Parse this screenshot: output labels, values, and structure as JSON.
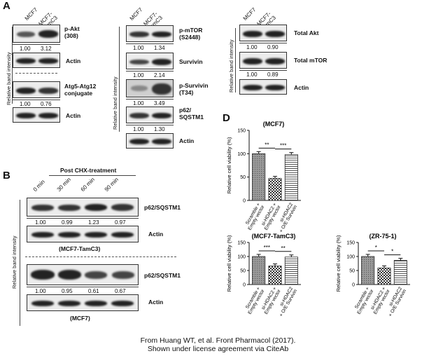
{
  "panel_labels": {
    "a": "A",
    "b": "B",
    "d": "D"
  },
  "lanes": {
    "mcf7": "MCF7",
    "tamc3": "MCF7-\nTamC3"
  },
  "y_axis_blot": "Relative band intensity",
  "a_col1": {
    "pakt": "p-Akt\n(308)",
    "pakt_vals": [
      "1.00",
      "3.12"
    ],
    "actin": "Actin",
    "atg": "Atg5-Atg12\nconjugate",
    "atg_vals": [
      "1.00",
      "0.76"
    ]
  },
  "a_col2": {
    "pmtor": "p-mTOR\n(S2448)",
    "pmtor_vals": [
      "1.00",
      "1.34"
    ],
    "survivin": "Survivin",
    "survivin_vals": [
      "1.00",
      "2.14"
    ],
    "psurv": "p-Survivin\n(T34)",
    "psurv_vals": [
      "1.00",
      "3.49"
    ],
    "p62": "p62/\nSQSTM1",
    "p62_vals": [
      "1.00",
      "1.30"
    ],
    "actin": "Actin"
  },
  "a_col3": {
    "takt": "Total Akt",
    "takt_vals": [
      "1.00",
      "0.90"
    ],
    "tmtor": "Total mTOR",
    "tmtor_vals": [
      "1.00",
      "0.89"
    ],
    "actin": "Actin"
  },
  "b": {
    "header": "Post CHX-treatment",
    "times": [
      "0 min",
      "30 min",
      "60 min",
      "90 min"
    ],
    "p62": "p62/SQSTM1",
    "top_vals": [
      "1.00",
      "0.99",
      "1.23",
      "0.97"
    ],
    "bot_vals": [
      "1.00",
      "0.95",
      "0.61",
      "0.67"
    ],
    "actin": "Actin",
    "top_cell": "(MCF7-TamC3)",
    "bot_cell": "(MCF7)"
  },
  "d": {
    "ylabel": "Relative cell viability (%)",
    "categories": [
      "Scramble +\nEmpty vector",
      "si-HDAC2 +\nEmpty vector",
      "si-HDAC2\n+ O/E Survivin"
    ]
  },
  "chart_data": [
    {
      "type": "bar",
      "title": "(MCF7)",
      "categories": [
        "Scramble + Empty vector",
        "si-HDAC2 + Empty vector",
        "si-HDAC2 + O/E Survivin"
      ],
      "values": [
        100,
        47,
        98
      ],
      "ylabel": "Relative cell viability (%)",
      "ylim": [
        0,
        150
      ],
      "yticks": [
        0,
        50,
        100,
        150
      ],
      "sig": [
        {
          "pair": [
            0,
            1
          ],
          "label": "**"
        },
        {
          "pair": [
            1,
            2
          ],
          "label": "***"
        }
      ]
    },
    {
      "type": "bar",
      "title": "(MCF7-TamC3)",
      "categories": [
        "Scramble + Empty vector",
        "si-HDAC2 + Empty vector",
        "si-HDAC2 + O/E Survivin"
      ],
      "values": [
        100,
        66,
        98
      ],
      "ylabel": "Relative cell viability (%)",
      "ylim": [
        0,
        150
      ],
      "yticks": [
        0,
        50,
        100,
        150
      ],
      "sig": [
        {
          "pair": [
            0,
            1
          ],
          "label": "***"
        },
        {
          "pair": [
            1,
            2
          ],
          "label": "**"
        }
      ]
    },
    {
      "type": "bar",
      "title": "(ZR-75-1)",
      "categories": [
        "Scramble + Empty vector",
        "si-HDAC2 + Empty vector",
        "si-HDAC2 + O/E Survivin"
      ],
      "values": [
        100,
        59,
        86
      ],
      "ylabel": "Relative cell viability (%)",
      "ylim": [
        0,
        150
      ],
      "yticks": [
        0,
        50,
        100,
        150
      ],
      "sig": [
        {
          "pair": [
            0,
            1
          ],
          "label": "*"
        },
        {
          "pair": [
            1,
            2
          ],
          "label": "*"
        }
      ]
    }
  ],
  "footer": {
    "line1": "From Huang WT, et al. Front Pharmacol (2017).",
    "line2": "Shown under license agreement via CiteAb"
  }
}
